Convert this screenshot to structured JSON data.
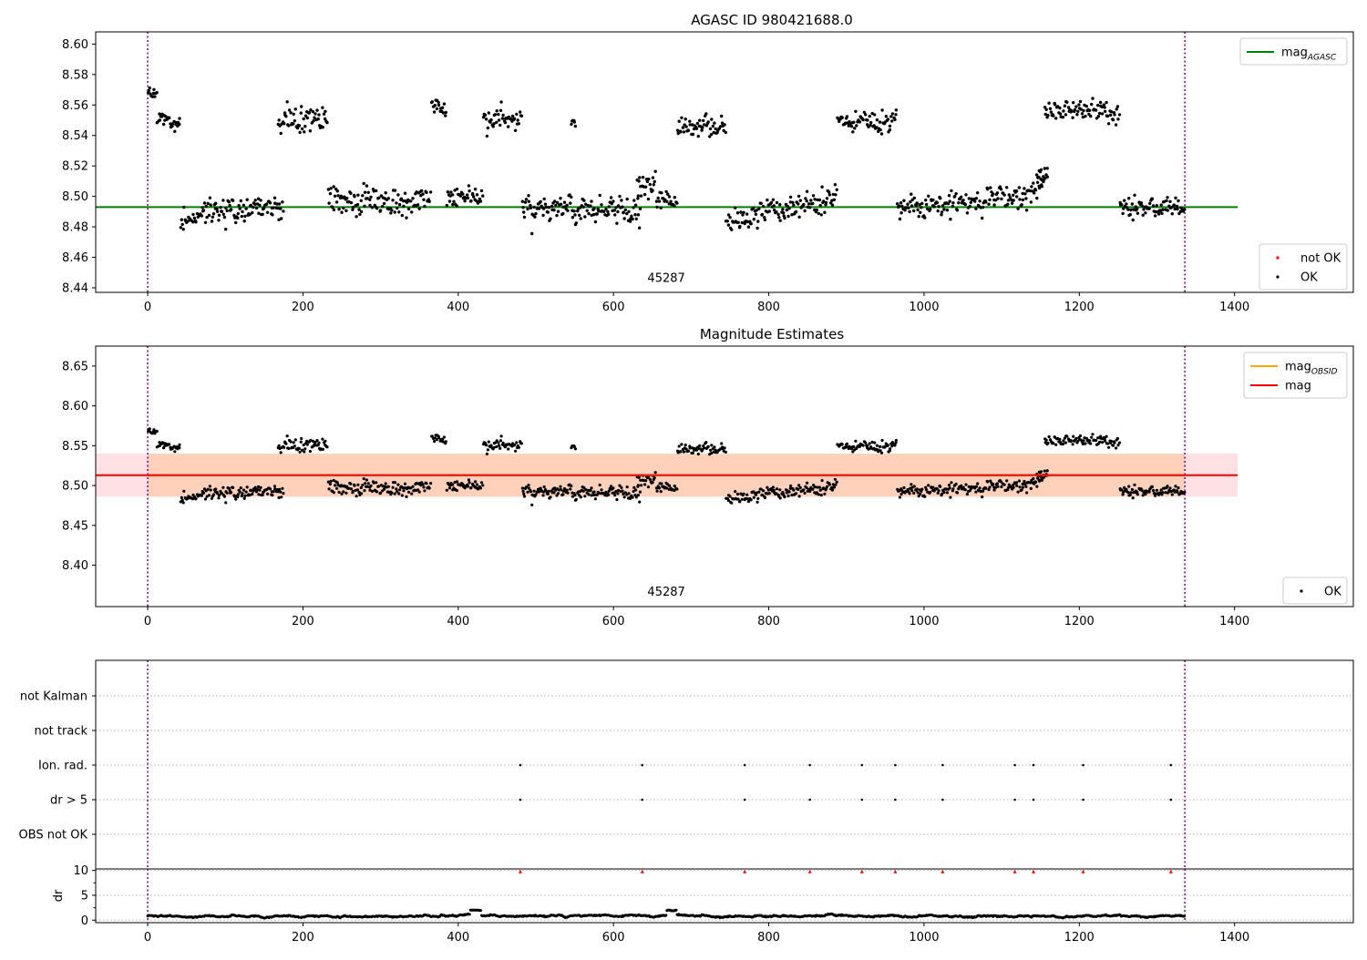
{
  "chart_data": [
    {
      "type": "scatter",
      "title": "AGASC ID 980421688.0",
      "xlim": [
        -67,
        1553
      ],
      "ylim": [
        8.437,
        8.608
      ],
      "x_ticks": [
        0,
        200,
        400,
        600,
        800,
        1000,
        1200,
        1400
      ],
      "y_ticks": [
        8.44,
        8.46,
        8.48,
        8.5,
        8.52,
        8.54,
        8.56,
        8.58,
        8.6
      ],
      "y_tick_labels": [
        "8.44",
        "8.46",
        "8.48",
        "8.50",
        "8.52",
        "8.54",
        "8.56",
        "8.58",
        "8.60"
      ],
      "hline": {
        "name": "mag",
        "subscript": "AGASC",
        "value": 8.493,
        "x_range": [
          -67,
          1404
        ],
        "color": "#008000"
      },
      "vlines": [
        0,
        1336
      ],
      "vline_color": "#800080",
      "annotation": {
        "text": "45287",
        "x": 668,
        "y": 8.444
      },
      "legends": [
        {
          "position": "top-right",
          "entries": [
            {
              "label": "mag",
              "subscript": "AGASC",
              "kind": "line",
              "color": "#008000"
            }
          ]
        },
        {
          "position": "bottom-right",
          "entries": [
            {
              "label": "not OK",
              "kind": "dot",
              "color": "#ff0000"
            },
            {
              "label": "OK",
              "kind": "dot",
              "color": "#000000"
            }
          ]
        }
      ],
      "series": [
        {
          "name": "OK",
          "color": "#000000",
          "segments": [
            {
              "x": [
                0,
                12
              ],
              "mean": 8.568,
              "spread": 0.006
            },
            {
              "x": [
                12,
                42
              ],
              "mean": 8.551,
              "spread": 0.008
            },
            {
              "x": [
                42,
                175
              ],
              "mean": 8.49,
              "spread": 0.009,
              "trend": 0.003
            },
            {
              "x": [
                168,
                232
              ],
              "mean": 8.551,
              "spread": 0.009
            },
            {
              "x": [
                232,
                365
              ],
              "mean": 8.496,
              "spread": 0.01
            },
            {
              "x": [
                365,
                385
              ],
              "mean": 8.557,
              "spread": 0.008
            },
            {
              "x": [
                385,
                432
              ],
              "mean": 8.499,
              "spread": 0.007
            },
            {
              "x": [
                432,
                482
              ],
              "mean": 8.55,
              "spread": 0.008
            },
            {
              "x": [
                482,
                635
              ],
              "mean": 8.492,
              "spread": 0.01
            },
            {
              "x": [
                545,
                552
              ],
              "mean": 8.55,
              "spread": 0.006
            },
            {
              "x": [
                630,
                655
              ],
              "mean": 8.508,
              "spread": 0.009
            },
            {
              "x": [
                655,
                682
              ],
              "mean": 8.498,
              "spread": 0.006
            },
            {
              "x": [
                682,
                745
              ],
              "mean": 8.545,
              "spread": 0.008
            },
            {
              "x": [
                745,
                888
              ],
              "mean": 8.492,
              "spread": 0.009,
              "trend": 0.008
            },
            {
              "x": [
                888,
                965
              ],
              "mean": 8.549,
              "spread": 0.008
            },
            {
              "x": [
                965,
                1155
              ],
              "mean": 8.497,
              "spread": 0.009,
              "trend": 0.006
            },
            {
              "x": [
                1145,
                1160
              ],
              "mean": 8.514,
              "spread": 0.006
            },
            {
              "x": [
                1155,
                1252
              ],
              "mean": 8.556,
              "spread": 0.008
            },
            {
              "x": [
                1252,
                1336
              ],
              "mean": 8.494,
              "spread": 0.008
            }
          ]
        }
      ]
    },
    {
      "type": "scatter",
      "title": "Magnitude Estimates",
      "xlim": [
        -67,
        1553
      ],
      "ylim": [
        8.348,
        8.675
      ],
      "x_ticks": [
        0,
        200,
        400,
        600,
        800,
        1000,
        1200,
        1400
      ],
      "y_ticks": [
        8.4,
        8.45,
        8.5,
        8.55,
        8.6,
        8.65
      ],
      "y_tick_labels": [
        "8.40",
        "8.45",
        "8.50",
        "8.55",
        "8.60",
        "8.65"
      ],
      "mag_line": {
        "name": "mag",
        "value": 8.513,
        "band": [
          8.486,
          8.54
        ],
        "x_range": [
          -67,
          1404
        ],
        "color": "#ff0000",
        "band_color": "#ffd6dc"
      },
      "obsid_line": {
        "name": "mag",
        "subscript": "OBSID",
        "value": 8.513,
        "band": [
          8.486,
          8.54
        ],
        "x_range": [
          0,
          1336
        ],
        "color": "#ffa500",
        "band_color": "#ffc9a8"
      },
      "vlines": [
        0,
        1336
      ],
      "vline_color": "#800080",
      "annotation": {
        "text": "45287",
        "x": 668,
        "y": 8.362
      },
      "legends": [
        {
          "position": "top-right",
          "entries": [
            {
              "label": "mag",
              "subscript": "OBSID",
              "kind": "line",
              "color": "#ffa500"
            },
            {
              "label": "mag",
              "kind": "line",
              "color": "#ff0000"
            }
          ]
        },
        {
          "position": "bottom-right",
          "entries": [
            {
              "label": "OK",
              "kind": "dot",
              "color": "#000000"
            }
          ]
        }
      ],
      "series": [
        {
          "name": "OK",
          "color": "#000000",
          "same_as_panel": 0
        }
      ]
    },
    {
      "type": "scatter",
      "title": "",
      "xlim": [
        -67,
        1553
      ],
      "x_ticks": [
        0,
        200,
        400,
        600,
        800,
        1000,
        1200,
        1400
      ],
      "categories": [
        "not Kalman",
        "not track",
        "Ion. rad.",
        "dr > 5",
        "OBS not OK"
      ],
      "vlines": [
        0,
        1336
      ],
      "vline_color": "#800080",
      "flags": [
        {
          "category": "Ion. rad.",
          "x": [
            480,
            637,
            769,
            853,
            920,
            963,
            1024,
            1117,
            1141,
            1205,
            1318
          ]
        },
        {
          "category": "dr > 5",
          "x": [
            480,
            637,
            769,
            853,
            920,
            963,
            1024,
            1117,
            1141,
            1205,
            1318
          ]
        }
      ]
    },
    {
      "type": "line",
      "title": "",
      "ylabel": "dr",
      "xlim": [
        -67,
        1553
      ],
      "ylim": [
        -0.5,
        10.3
      ],
      "x_ticks": [
        0,
        200,
        400,
        600,
        800,
        1000,
        1200,
        1400
      ],
      "y_ticks": [
        0,
        5,
        10
      ],
      "y_tick_labels": [
        "0",
        "5",
        "10"
      ],
      "vlines": [
        0,
        1336
      ],
      "vline_color": "#800080",
      "outliers": {
        "color": "#ff0000",
        "y": 9.8,
        "x": [
          480,
          637,
          769,
          853,
          920,
          963,
          1024,
          1117,
          1141,
          1205,
          1318
        ]
      },
      "series": [
        {
          "color": "#000000",
          "x_range": [
            0,
            1336
          ],
          "mean": 0.8,
          "spread": 0.45,
          "max": 2.0
        }
      ]
    }
  ]
}
